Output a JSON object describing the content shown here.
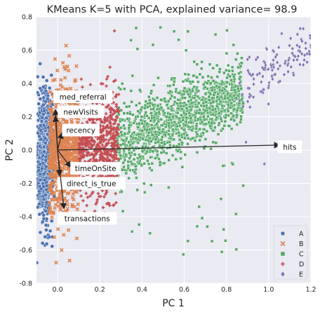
{
  "chart_data": {
    "type": "scatter",
    "title": "KMeans K=5 with PCA, explained variance= 98.9",
    "xlabel": "PC 1",
    "ylabel": "PC 2",
    "xlim": [
      -0.1,
      1.2
    ],
    "ylim": [
      -0.8,
      0.8
    ],
    "xticks": [
      "0.0",
      "0.2",
      "0.4",
      "0.6",
      "0.8",
      "1.0",
      "1.2"
    ],
    "yticks": [
      "-0.8",
      "-0.6",
      "-0.4",
      "-0.2",
      "0.0",
      "0.2",
      "0.4",
      "0.6",
      "0.8"
    ],
    "grid": true,
    "background": "#eaeaf2",
    "legend_position": "bottom-right",
    "series": [
      {
        "name": "A",
        "marker": "circle",
        "color": "#4c72b0",
        "x_range": [
          -0.1,
          -0.04
        ],
        "y_range": [
          -0.8,
          0.52
        ],
        "count": 900
      },
      {
        "name": "B",
        "marker": "x",
        "color": "#dd8452",
        "x_range": [
          -0.04,
          0.1
        ],
        "y_range": [
          -0.75,
          0.45
        ],
        "count": 700
      },
      {
        "name": "C",
        "marker": "square",
        "color": "#55a868",
        "x_range": [
          0.28,
          0.88
        ],
        "y_range": [
          -0.65,
          0.75
        ],
        "count": 1400
      },
      {
        "name": "D",
        "marker": "plus",
        "color": "#c44e52",
        "x_range": [
          0.1,
          0.29
        ],
        "y_range": [
          -0.65,
          0.45
        ],
        "count": 700
      },
      {
        "name": "E",
        "marker": "diamond",
        "color": "#8172b3",
        "x_range": [
          0.86,
          1.2
        ],
        "y_range": [
          0.25,
          0.78
        ],
        "count": 120
      }
    ],
    "loading_vectors": [
      {
        "name": "hits",
        "x": 1.05,
        "y": 0.03,
        "label_x": 1.1,
        "label_y": 0.02
      },
      {
        "name": "med_referral",
        "x": -0.01,
        "y": 0.24,
        "label_x": 0.12,
        "label_y": 0.32
      },
      {
        "name": "newVisits",
        "x": -0.01,
        "y": 0.2,
        "label_x": 0.11,
        "label_y": 0.23
      },
      {
        "name": "recency",
        "x": 0.02,
        "y": 0.1,
        "label_x": 0.11,
        "label_y": 0.12
      },
      {
        "name": "timeOnSite",
        "x": 0.06,
        "y": -0.1,
        "label_x": 0.18,
        "label_y": -0.11
      },
      {
        "name": "direct_is_true",
        "x": 0.01,
        "y": -0.15,
        "label_x": 0.16,
        "label_y": -0.2
      },
      {
        "name": "transactions",
        "x": 0.03,
        "y": -0.35,
        "label_x": 0.14,
        "label_y": -0.41
      }
    ]
  }
}
